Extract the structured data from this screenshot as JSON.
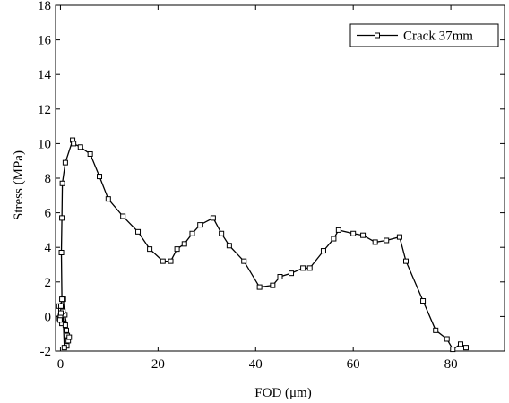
{
  "chart_data": {
    "type": "line",
    "title": "",
    "xlabel": "FOD (μm)",
    "ylabel": "Stress (MPa)",
    "xlim": [
      -1,
      91
    ],
    "ylim": [
      -2,
      18
    ],
    "xticks": [
      0,
      20,
      40,
      60,
      80
    ],
    "yticks": [
      -2,
      0,
      2,
      4,
      6,
      8,
      10,
      12,
      14,
      16,
      18
    ],
    "grid": false,
    "legend_position": "top-right",
    "marker": "square",
    "line_color": "#000000",
    "series": [
      {
        "name": "Crack 37mm",
        "x": [
          0.0,
          0.3,
          -0.2,
          0.5,
          0.1,
          -0.3,
          0.6,
          1.0,
          1.4,
          1.6,
          1.2,
          0.9,
          1.8,
          1.3,
          0.8,
          0.5,
          0.1,
          0.0,
          -0.1,
          0.1,
          0.3,
          0.2,
          0.3,
          0.4,
          1.0,
          2.5,
          2.7,
          4.1,
          6.1,
          8.0,
          9.8,
          12.8,
          15.9,
          18.3,
          21.0,
          22.6,
          23.9,
          25.4,
          27.0,
          28.6,
          31.3,
          33.0,
          34.6,
          37.6,
          40.8,
          43.5,
          45.0,
          47.3,
          49.7,
          51.1,
          53.9,
          56.0,
          57.0,
          60.0,
          62.0,
          64.5,
          66.8,
          69.5,
          70.8,
          74.3,
          76.9,
          79.2,
          80.4,
          82.0,
          83.1
        ],
        "y": [
          -0.2,
          -0.4,
          -0.1,
          0.2,
          0.4,
          0.6,
          1.0,
          -0.5,
          -1.1,
          -1.4,
          -0.8,
          0.1,
          -1.2,
          -1.7,
          -1.8,
          0.3,
          0.6,
          0.0,
          -0.2,
          0.2,
          1.0,
          3.7,
          5.7,
          7.7,
          8.9,
          10.2,
          10.0,
          9.8,
          9.4,
          8.1,
          6.8,
          5.8,
          4.9,
          3.9,
          3.2,
          3.2,
          3.9,
          4.2,
          4.8,
          5.3,
          5.7,
          4.8,
          4.1,
          3.2,
          1.7,
          1.8,
          2.3,
          2.5,
          2.8,
          2.8,
          3.8,
          4.5,
          5.0,
          4.8,
          4.7,
          4.3,
          4.4,
          4.6,
          3.2,
          0.9,
          -0.8,
          -1.3,
          -1.9,
          -1.6,
          -1.8
        ]
      }
    ]
  }
}
